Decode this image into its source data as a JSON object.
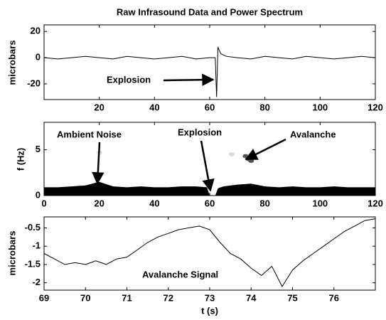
{
  "chart_data": [
    {
      "type": "line",
      "title": "Raw Infrasound Data and Power Spectrum",
      "ylabel": "microbars",
      "color": "#000000",
      "x": [
        0,
        5,
        10,
        15,
        20,
        25,
        30,
        35,
        40,
        45,
        50,
        55,
        60,
        62,
        62.5,
        63,
        64,
        66,
        70,
        75,
        80,
        85,
        90,
        95,
        100,
        105,
        110,
        115,
        120
      ],
      "values": [
        0,
        -1,
        0,
        1,
        0,
        -1,
        1,
        0,
        -1,
        0,
        1,
        -1,
        0,
        0,
        -30,
        8,
        3,
        1,
        0,
        -1,
        1,
        0,
        -1,
        1,
        0,
        -1,
        0,
        1,
        0
      ],
      "xlim": [
        0,
        120
      ],
      "xticks": [
        20,
        40,
        60,
        80,
        100,
        120
      ],
      "ylim": [
        -32,
        25
      ],
      "yticks": [
        -20,
        0,
        20
      ],
      "annotations": [
        "Explosion"
      ]
    },
    {
      "type": "spectrogram",
      "ylabel": "f (Hz)",
      "color": "#000000",
      "x": [
        0,
        5,
        10,
        15,
        20,
        25,
        30,
        35,
        40,
        45,
        50,
        55,
        59,
        60,
        62,
        63,
        65,
        70,
        75,
        80,
        85,
        90,
        95,
        100,
        105,
        110,
        115,
        120
      ],
      "values": [
        0.9,
        0.9,
        1.0,
        1.1,
        1.5,
        1.0,
        0.9,
        1.0,
        0.9,
        0.9,
        1.0,
        1.0,
        0.9,
        0,
        0,
        0.8,
        1.0,
        1.2,
        1.3,
        1.0,
        0.9,
        1.0,
        0.9,
        0.9,
        1.0,
        0.9,
        0.9,
        0.9
      ],
      "spot_x": [
        20,
        68,
        73,
        74,
        75
      ],
      "spot_y": [
        4.7,
        4.5,
        4.3,
        4.0,
        3.8
      ],
      "xlim": [
        0,
        120
      ],
      "xticks": [
        0,
        20,
        40,
        60,
        80,
        100,
        120
      ],
      "ylim": [
        0,
        8
      ],
      "yticks": [
        0,
        5
      ],
      "annotations": [
        "Ambient Noise",
        "Explosion",
        "Avalanche"
      ]
    },
    {
      "type": "line",
      "xlabel": "t (s)",
      "ylabel": "microbars",
      "color": "#000000",
      "x": [
        69,
        69.25,
        69.5,
        69.75,
        70,
        70.25,
        70.5,
        70.75,
        71,
        71.25,
        71.5,
        71.75,
        72,
        72.25,
        72.5,
        72.75,
        73,
        73.25,
        73.5,
        73.75,
        74,
        74.25,
        74.5,
        74.75,
        75,
        75.25,
        75.5,
        75.75,
        76,
        76.25,
        76.5,
        76.75,
        77
      ],
      "values": [
        -1.2,
        -1.35,
        -1.5,
        -1.45,
        -1.5,
        -1.4,
        -1.5,
        -1.35,
        -1.3,
        -1.1,
        -0.9,
        -0.75,
        -0.65,
        -0.55,
        -0.5,
        -0.45,
        -0.55,
        -0.9,
        -1.2,
        -1.35,
        -1.6,
        -1.8,
        -1.55,
        -2.1,
        -1.65,
        -1.4,
        -1.2,
        -1.0,
        -0.8,
        -0.6,
        -0.45,
        -0.3,
        -0.25
      ],
      "xlim": [
        69,
        77
      ],
      "xticks": [
        69,
        70,
        71,
        72,
        73,
        74,
        75,
        76
      ],
      "ylim": [
        -2.2,
        -0.2
      ],
      "yticks": [
        -2,
        -1.5,
        -1,
        -0.5
      ],
      "annotations": [
        "Avalanche Signal"
      ]
    }
  ]
}
